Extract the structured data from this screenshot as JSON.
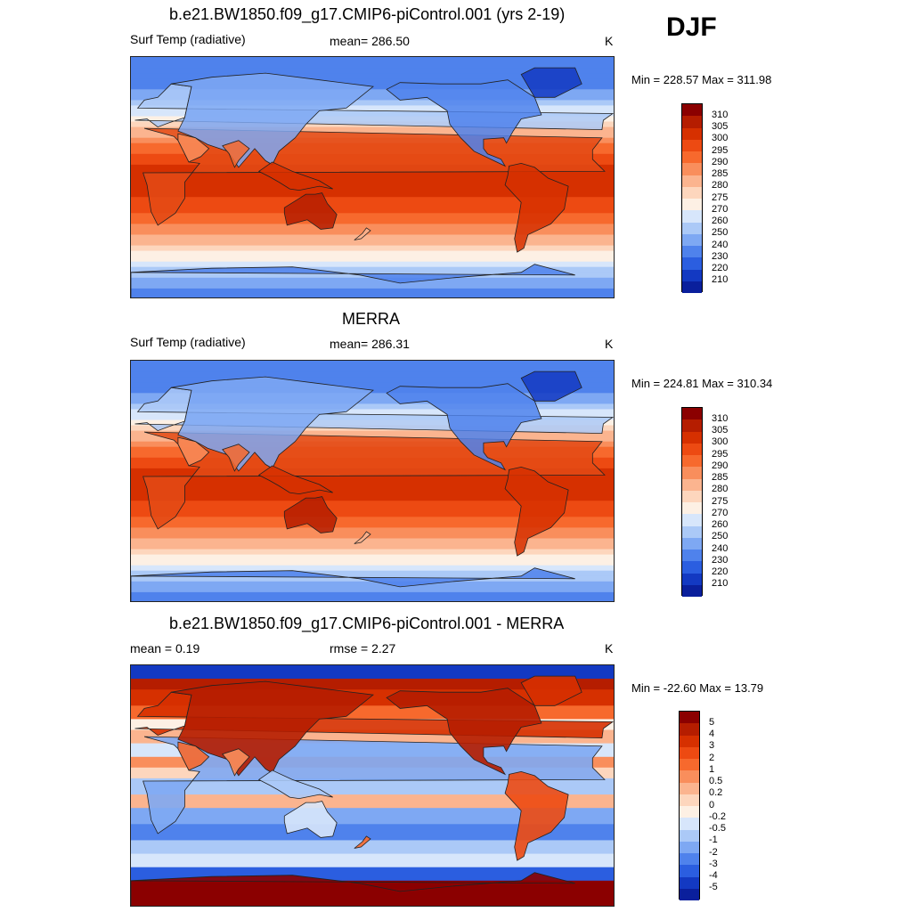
{
  "season": "DJF",
  "panels": [
    {
      "title": "b.e21.BW1850.f09_g17.CMIP6-piControl.001 (yrs 2-19)",
      "left_label": "Surf Temp (radiative)",
      "center_label": "mean= 286.50",
      "units": "K",
      "minmax": "Min = 228.57 Max = 311.98",
      "colorbar": {
        "labels": [
          "310",
          "305",
          "300",
          "295",
          "290",
          "285",
          "280",
          "275",
          "270",
          "260",
          "250",
          "240",
          "230",
          "220",
          "210"
        ],
        "colors": [
          "#8b0000",
          "#b51d00",
          "#d63000",
          "#ed4a12",
          "#f7692d",
          "#f98e5c",
          "#fbb48f",
          "#fdd6bd",
          "#fdf0e4",
          "#d7e6fb",
          "#abc9f7",
          "#7ea8f3",
          "#4f82ec",
          "#2b5ee0",
          "#1339c2",
          "#0a1f9c"
        ]
      },
      "pattern": "abs"
    },
    {
      "title": "MERRA",
      "left_label": "Surf Temp (radiative)",
      "center_label": "mean= 286.31",
      "units": "K",
      "minmax": "Min = 224.81 Max = 310.34",
      "colorbar": {
        "labels": [
          "310",
          "305",
          "300",
          "295",
          "290",
          "285",
          "280",
          "275",
          "270",
          "260",
          "250",
          "240",
          "230",
          "220",
          "210"
        ],
        "colors": [
          "#8b0000",
          "#b51d00",
          "#d63000",
          "#ed4a12",
          "#f7692d",
          "#f98e5c",
          "#fbb48f",
          "#fdd6bd",
          "#fdf0e4",
          "#d7e6fb",
          "#abc9f7",
          "#7ea8f3",
          "#4f82ec",
          "#2b5ee0",
          "#1339c2",
          "#0a1f9c"
        ]
      },
      "pattern": "abs"
    },
    {
      "title": "b.e21.BW1850.f09_g17.CMIP6-piControl.001 - MERRA",
      "left_label": "mean =   0.19",
      "center_label": "rmse =   2.27",
      "units": "K",
      "minmax": "Min = -22.60 Max =  13.79",
      "colorbar": {
        "labels": [
          "5",
          "4",
          "3",
          "2",
          "1",
          "0.5",
          "0.2",
          "0",
          "-0.2",
          "-0.5",
          "-1",
          "-2",
          "-3",
          "-4",
          "-5"
        ],
        "colors": [
          "#8b0000",
          "#b51d00",
          "#d63000",
          "#ed4a12",
          "#f7692d",
          "#f98e5c",
          "#fbb48f",
          "#fdd6bd",
          "#fdf0e4",
          "#d7e6fb",
          "#abc9f7",
          "#7ea8f3",
          "#4f82ec",
          "#2b5ee0",
          "#1339c2",
          "#0a1f9c"
        ]
      },
      "pattern": "diff"
    }
  ]
}
